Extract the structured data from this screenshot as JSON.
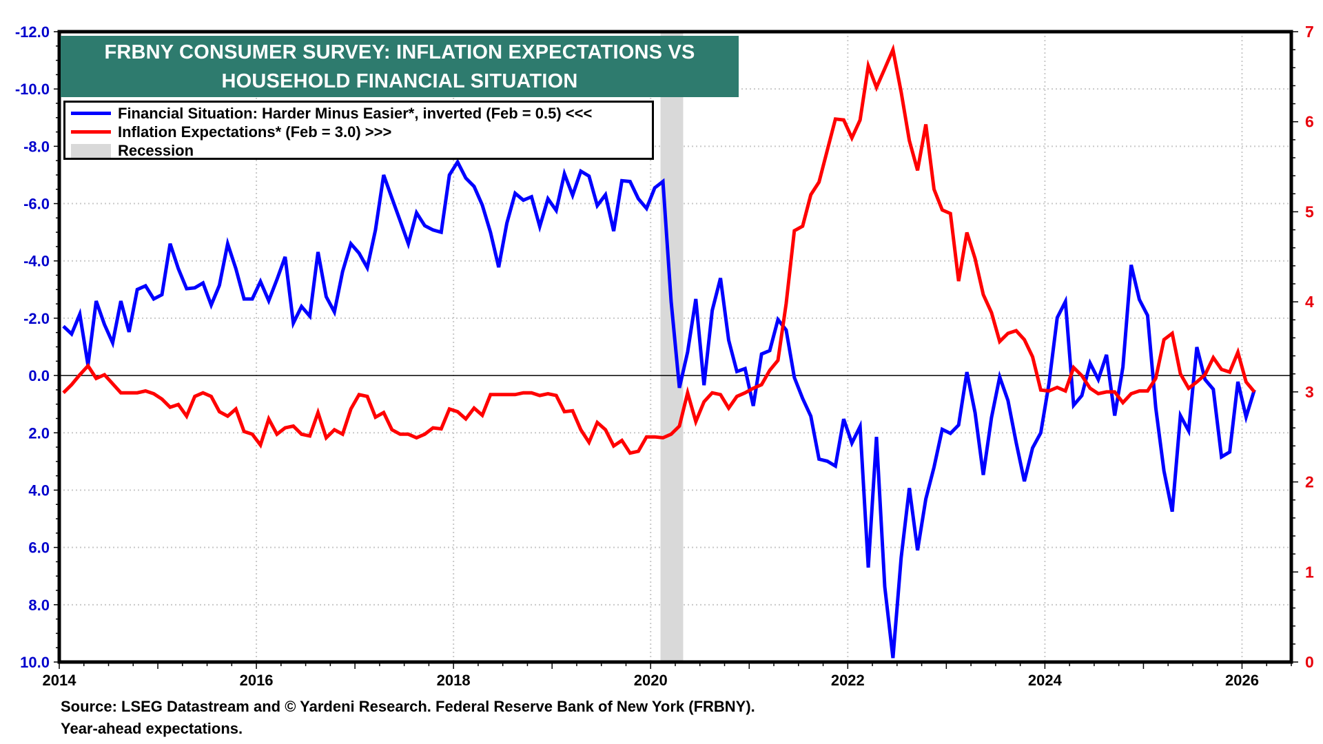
{
  "chart_data": {
    "type": "line",
    "title": "FRBNY CONSUMER SURVEY: INFLATION EXPECTATIONS VS HOUSEHOLD FINANCIAL SITUATION",
    "title_lines": [
      "FRBNY CONSUMER SURVEY: INFLATION EXPECTATIONS VS",
      "HOUSEHOLD FINANCIAL SITUATION"
    ],
    "x_start": "2014-01",
    "x_frequency": "monthly",
    "x_range": [
      2014.0,
      2026.5
    ],
    "x_ticks": [
      "2014",
      "2016",
      "2018",
      "2020",
      "2022",
      "2024",
      "2026"
    ],
    "left_axis": {
      "range": [
        -12,
        10
      ],
      "inverted": true,
      "ticks": [
        "-12.0",
        "-10.0",
        "-8.0",
        "-6.0",
        "-4.0",
        "-2.0",
        "0.0",
        "2.0",
        "4.0",
        "6.0",
        "8.0",
        "10.0"
      ],
      "color": "#0000cc"
    },
    "right_axis": {
      "range": [
        0,
        7
      ],
      "ticks": [
        "0",
        "1",
        "2",
        "3",
        "4",
        "5",
        "6",
        "7"
      ],
      "color": "#e8000b"
    },
    "grid": true,
    "zero_line": true,
    "legend_position": "top-left",
    "series": [
      {
        "name": "Financial Situation: Harder Minus Easier*, inverted (Feb = 0.5) <<<",
        "axis": "left",
        "color": "#0000ff",
        "values": [
          -1.72,
          -1.45,
          -2.14,
          -0.36,
          -2.6,
          -1.78,
          -1.14,
          -2.6,
          -1.52,
          -3.0,
          -3.13,
          -2.67,
          -2.82,
          -4.6,
          -3.73,
          -3.03,
          -3.06,
          -3.23,
          -2.46,
          -3.15,
          -4.6,
          -3.73,
          -2.67,
          -2.67,
          -3.28,
          -2.61,
          -3.35,
          -4.14,
          -1.83,
          -2.41,
          -2.07,
          -4.31,
          -2.75,
          -2.22,
          -3.63,
          -4.6,
          -4.27,
          -3.76,
          -5.08,
          -7.0,
          -6.19,
          -5.4,
          -4.6,
          -5.68,
          -5.23,
          -5.08,
          -5.0,
          -7.0,
          -7.45,
          -6.89,
          -6.6,
          -5.95,
          -5.0,
          -3.78,
          -5.32,
          -6.36,
          -6.12,
          -6.24,
          -5.2,
          -6.17,
          -5.76,
          -7.04,
          -6.29,
          -7.13,
          -6.96,
          -5.93,
          -6.31,
          -5.04,
          -6.8,
          -6.77,
          -6.17,
          -5.83,
          -6.55,
          -6.77,
          -2.58,
          0.43,
          -0.82,
          -2.67,
          0.34,
          -2.27,
          -3.4,
          -1.23,
          -0.14,
          -0.24,
          1.06,
          -0.75,
          -0.87,
          -1.95,
          -1.59,
          0.07,
          0.8,
          1.42,
          2.92,
          2.99,
          3.16,
          1.52,
          2.36,
          1.78,
          6.7,
          2.14,
          7.37,
          9.86,
          6.36,
          3.93,
          6.1,
          4.31,
          3.2,
          1.88,
          2.02,
          1.73,
          -0.12,
          1.3,
          3.47,
          1.47,
          0.05,
          0.87,
          2.34,
          3.69,
          2.53,
          2.0,
          0.27,
          -2.02,
          -2.58,
          1.04,
          0.7,
          -0.43,
          0.14,
          -0.72,
          1.4,
          -0.29,
          -3.86,
          -2.65,
          -2.1,
          1.13,
          3.33,
          4.75,
          1.4,
          1.93,
          -0.99,
          0.14,
          0.48,
          2.84,
          2.67,
          0.22,
          1.45,
          0.5
        ]
      },
      {
        "name": "Inflation Expectations* (Feb = 3.0) >>>",
        "axis": "right",
        "color": "#ff0000",
        "values": [
          2.99,
          3.08,
          3.19,
          3.29,
          3.15,
          3.19,
          3.09,
          2.99,
          2.99,
          2.99,
          3.01,
          2.98,
          2.92,
          2.83,
          2.86,
          2.73,
          2.95,
          2.99,
          2.95,
          2.78,
          2.73,
          2.81,
          2.56,
          2.53,
          2.41,
          2.7,
          2.53,
          2.6,
          2.62,
          2.53,
          2.51,
          2.77,
          2.49,
          2.58,
          2.53,
          2.81,
          2.97,
          2.95,
          2.72,
          2.77,
          2.58,
          2.53,
          2.53,
          2.49,
          2.53,
          2.6,
          2.59,
          2.81,
          2.78,
          2.7,
          2.82,
          2.74,
          2.97,
          2.97,
          2.97,
          2.97,
          2.99,
          2.99,
          2.96,
          2.98,
          2.96,
          2.78,
          2.79,
          2.58,
          2.44,
          2.66,
          2.58,
          2.4,
          2.46,
          2.32,
          2.34,
          2.5,
          2.5,
          2.49,
          2.53,
          2.62,
          2.99,
          2.67,
          2.89,
          2.99,
          2.97,
          2.82,
          2.95,
          2.99,
          3.04,
          3.08,
          3.24,
          3.35,
          3.98,
          4.79,
          4.84,
          5.19,
          5.33,
          5.68,
          6.03,
          6.02,
          5.82,
          6.02,
          6.62,
          6.38,
          6.59,
          6.8,
          6.33,
          5.79,
          5.46,
          5.97,
          5.25,
          5.02,
          4.98,
          4.23,
          4.77,
          4.48,
          4.08,
          3.88,
          3.56,
          3.65,
          3.68,
          3.58,
          3.39,
          3.02,
          3.01,
          3.05,
          3.01,
          3.27,
          3.18,
          3.04,
          2.98,
          3.0,
          3.0,
          2.88,
          2.98,
          3.01,
          3.01,
          3.15,
          3.58,
          3.65,
          3.2,
          3.04,
          3.11,
          3.19,
          3.38,
          3.25,
          3.22,
          3.44,
          3.11,
          3.0
        ]
      }
    ],
    "recessions": [
      {
        "label": "Recession",
        "start": 2020.1,
        "end": 2020.33,
        "color": "#d9d9d9"
      }
    ],
    "legend": [
      {
        "label": "Financial Situation: Harder Minus Easier*, inverted (Feb = 0.5) <<<",
        "kind": "line",
        "color": "#0000ff"
      },
      {
        "label": "Inflation Expectations* (Feb = 3.0) >>>",
        "kind": "line",
        "color": "#ff0000"
      },
      {
        "label": "Recession",
        "kind": "band",
        "color": "#d9d9d9"
      }
    ],
    "title_background": "#2e7b6e"
  },
  "footer": {
    "source": "Source: LSEG Datastream and © Yardeni Research. Federal Reserve Bank of New York  (FRBNY).",
    "note": "Year-ahead expectations."
  }
}
